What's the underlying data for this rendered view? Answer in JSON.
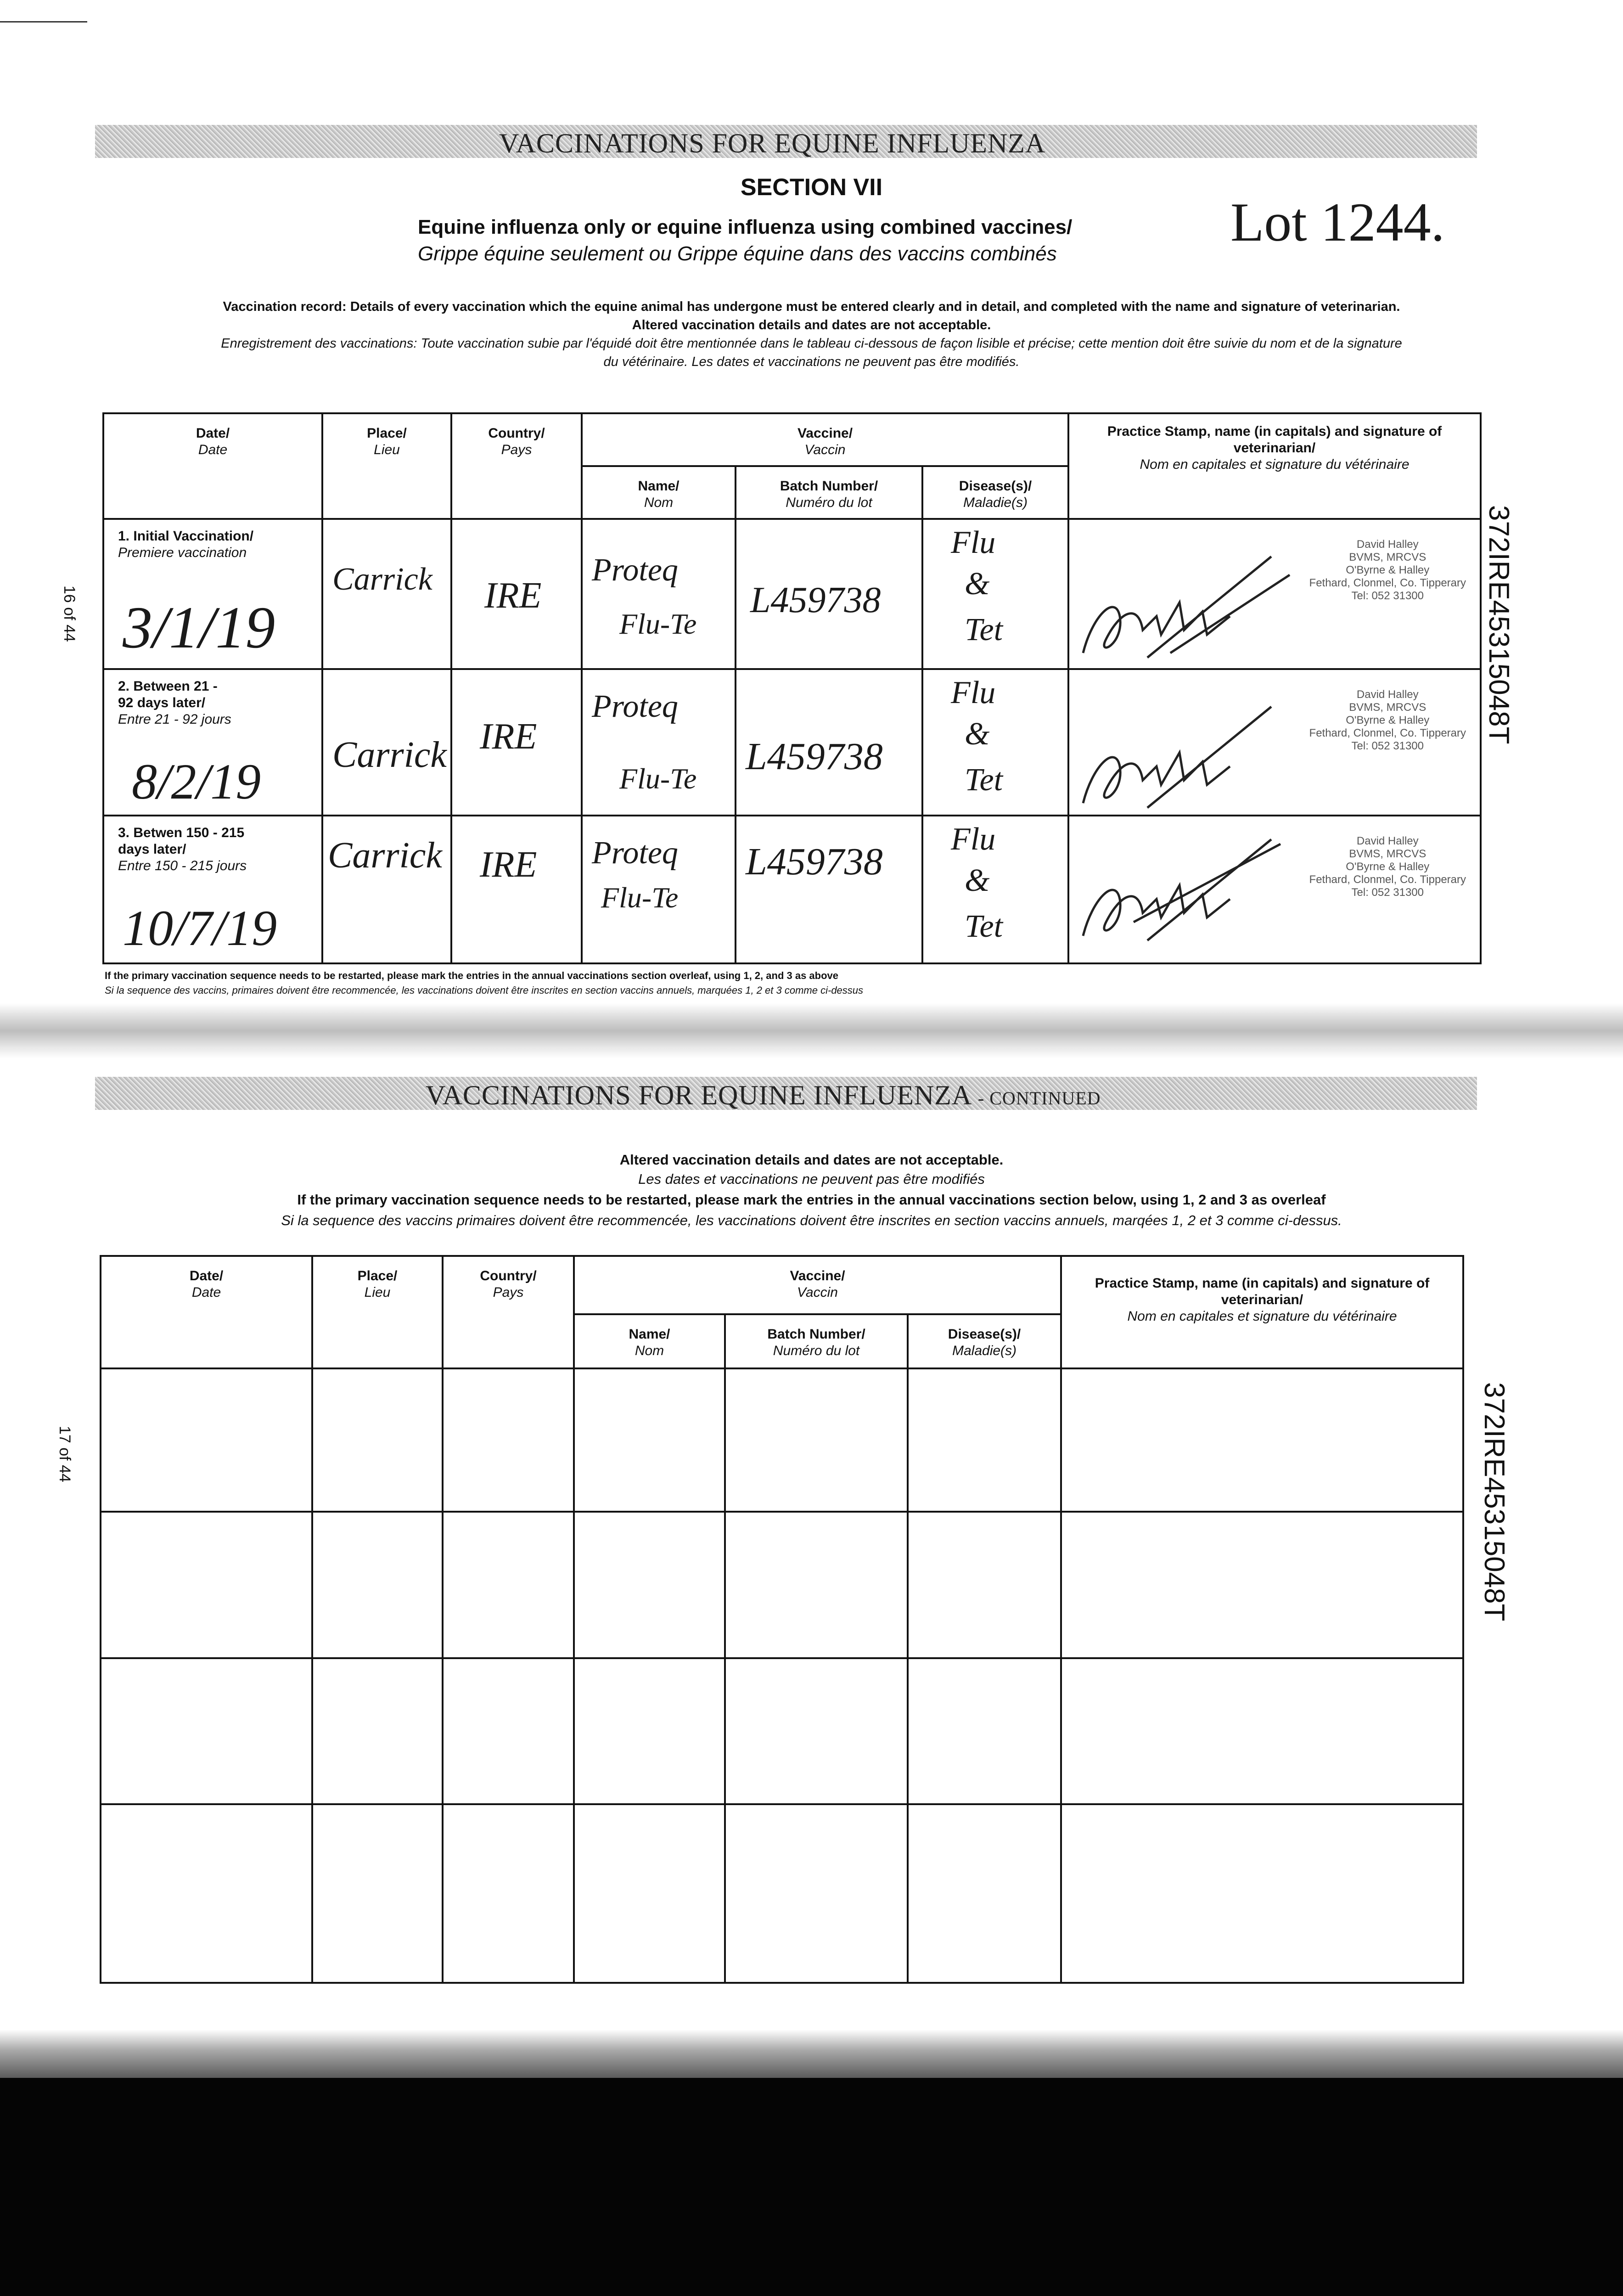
{
  "page1": {
    "band_title": "VACCINATIONS FOR EQUINE INFLUENZA",
    "section": "SECTION VII",
    "subtitle_en": "Equine influenza only or equine influenza using combined vaccines/",
    "subtitle_fr": "Grippe équine seulement ou Grippe équine dans des vaccins combinés",
    "lot_note": "Lot 1244.",
    "record_en": "Vaccination record: Details of every vaccination which the equine animal has undergone must be entered clearly and in detail, and completed with the name and signature of veterinarian.",
    "record_en2": "Altered vaccination details and dates are not acceptable.",
    "record_fr": "Enregistrement des vaccinations: Toute vaccination subie par l'équidé doit être mentionnée dans le tableau ci-dessous de façon lisible et précise; cette mention doit être suivie du nom et de la signature",
    "record_fr2": "du vétérinaire. Les dates et vaccinations ne peuvent pas être modifiés.",
    "page_label": "16 of 44",
    "side_id": "372IRE45315048T",
    "footnote_en": "If the primary vaccination sequence needs to be restarted, please mark the entries in the annual vaccinations section overleaf, using 1, 2, and 3 as above",
    "footnote_fr": "Si la sequence des vaccins, primaires doivent être recommencée, les vaccinations doivent être inscrites en section vaccins annuels, marquées 1, 2 et 3 comme ci-dessus"
  },
  "headers": {
    "date": "Date/",
    "date_fr": "Date",
    "place": "Place/",
    "place_fr": "Lieu",
    "country": "Country/",
    "country_fr": "Pays",
    "vaccine": "Vaccine/",
    "vaccine_fr": "Vaccin",
    "name": "Name/",
    "name_fr": "Nom",
    "batch": "Batch Number/",
    "batch_fr": "Numéro du lot",
    "disease": "Disease(s)/",
    "disease_fr": "Maladie(s)",
    "stamp": "Practice Stamp, name (in capitals) and signature of veterinarian/",
    "stamp_fr": "Nom en capitales et signature du vétérinaire"
  },
  "rows": [
    {
      "label": "1. Initial Vaccination/",
      "label_fr": "Premiere vaccination",
      "date": "3/1/19",
      "place": "Carrick",
      "country": "IRE",
      "name": "Proteq",
      "name2": "Flu-Te",
      "batch": "L459738",
      "disease": "Flu",
      "disease2": "&",
      "disease3": "Tet",
      "stamp": [
        "David Halley",
        "BVMS, MRCVS",
        "O'Byrne & Halley",
        "Fethard, Clonmel, Co. Tipperary",
        "Tel: 052 31300"
      ]
    },
    {
      "label": "2. Between 21 - 92 days later/",
      "label_fr": "Entre 21 - 92 jours",
      "date": "8/2/19",
      "place": "Carrick",
      "country": "IRE",
      "name": "Proteq",
      "name2": "Flu-Te",
      "batch": "L459738",
      "disease": "Flu",
      "disease2": "&",
      "disease3": "Tet",
      "stamp": [
        "David Halley",
        "BVMS, MRCVS",
        "O'Byrne & Halley",
        "Fethard, Clonmel, Co. Tipperary",
        "Tel: 052 31300"
      ]
    },
    {
      "label": "3. Betwen 150 - 215 days later/",
      "label_fr": "Entre 150 - 215 jours",
      "date": "10/7/19",
      "place": "Carrick",
      "country": "IRE",
      "name": "Proteq",
      "name2": "Flu-Te",
      "batch": "L459738",
      "disease": "Flu",
      "disease2": "&",
      "disease3": "Tet",
      "stamp": [
        "David Halley",
        "BVMS, MRCVS",
        "O'Byrne & Halley",
        "Fethard, Clonmel, Co. Tipperary",
        "Tel: 052 31300"
      ]
    }
  ],
  "page2": {
    "band_title": "VACCINATIONS FOR EQUINE INFLUENZA",
    "band_suffix": "- CONTINUED",
    "altered_en": "Altered vaccination details and dates are not acceptable.",
    "altered_fr": "Les dates et vaccinations ne peuvent pas être modifiés",
    "restart_en": "If the primary vaccination sequence needs to be restarted, please mark the entries in the annual vaccinations section below, using 1, 2 and 3 as overleaf",
    "restart_fr": "Si la sequence des vaccins primaires doivent être recommencée, les vaccinations doivent être inscrites en section vaccins annuels, marqées 1, 2 et 3 comme ci-dessus.",
    "page_label": "17 of 44",
    "side_id": "372IRE45315048T"
  }
}
